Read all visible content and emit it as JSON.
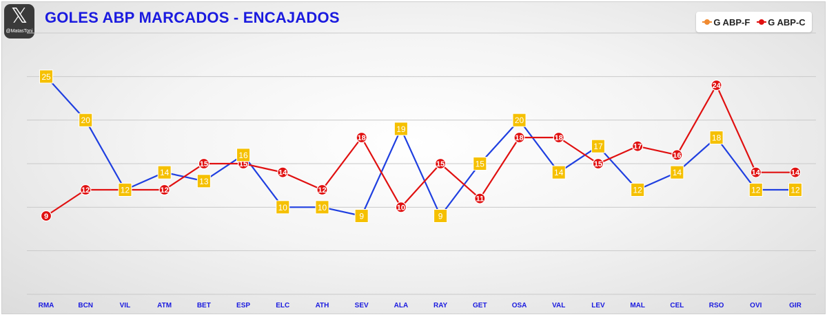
{
  "badge": {
    "icon": "x-logo-icon",
    "glyph": "𝕏",
    "handle": "@MatasToni"
  },
  "title": "GOLES ABP MARCADOS - ENCAJADOS",
  "chart_data": {
    "type": "line",
    "title": "GOLES ABP MARCADOS - ENCAJADOS",
    "xlabel": "",
    "ylabel": "",
    "ylim": [
      0,
      30
    ],
    "grid": true,
    "legend_position": "top-right",
    "categories": [
      "RMA",
      "BCN",
      "VIL",
      "ATM",
      "BET",
      "ESP",
      "ELC",
      "ATH",
      "SEV",
      "ALA",
      "RAY",
      "GET",
      "OSA",
      "VAL",
      "LEV",
      "MAL",
      "CEL",
      "RSO",
      "OVI",
      "GIR"
    ],
    "series": [
      {
        "name": "G ABP-F",
        "line_color": "#1f3fe0",
        "marker_color": "#f5c000",
        "legend_color": "#f08a30",
        "values": [
          25,
          20,
          12,
          14,
          13,
          16,
          10,
          10,
          9,
          19,
          9,
          15,
          20,
          14,
          17,
          12,
          14,
          18,
          12,
          12
        ]
      },
      {
        "name": "G ABP-C",
        "line_color": "#e01010",
        "marker_color": "#e01010",
        "legend_color": "#e01010",
        "values": [
          9,
          12,
          12,
          12,
          15,
          15,
          14,
          12,
          18,
          10,
          15,
          11,
          18,
          18,
          15,
          17,
          16,
          24,
          14,
          14
        ]
      }
    ]
  }
}
